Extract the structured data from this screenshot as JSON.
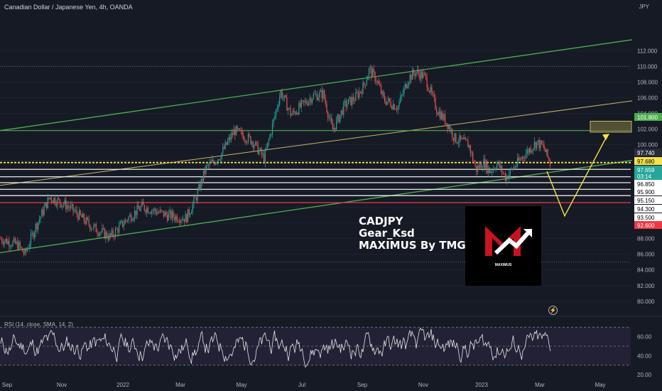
{
  "header": {
    "title": "Canadian Dollar / Japanese Yen, 4h, OANDA",
    "currency": "JPY"
  },
  "watermark": {
    "lines": [
      "CADJPY",
      "Gear_Ksd",
      "MAXIMUS By TMGM"
    ],
    "logo_caption": "MAXIMUS"
  },
  "rsi": {
    "label": "RSI (14, close, SMA, 14, 2)"
  },
  "colors": {
    "background": "#161a25",
    "candle_up": "#26a69a",
    "candle_down": "#ef5350",
    "channel": "#4caf50",
    "midline": "#c8b46b",
    "horizontal_yellow": "#f5e14b",
    "horizontal_white": "#ffffff",
    "horizontal_red": "#f23645",
    "projection": "#f5e14b",
    "rsi_line": "#e6e6e6",
    "rsi_band": "#3b3255"
  },
  "chart_data": {
    "type": "candlestick",
    "symbol": "CADJPY",
    "timeframe": "4h",
    "ylim": [
      78.8,
      115.3
    ],
    "y_ticks": [
      80,
      82,
      84,
      86,
      88,
      90,
      92,
      94,
      96,
      98,
      100,
      102,
      104,
      106,
      108,
      110,
      112
    ],
    "y_tick_labels": [
      "80.000",
      "82.000",
      "84.000",
      "86.000",
      "88.000",
      "90.000",
      "92.000",
      "94.000",
      "96.000",
      "98.000",
      "100.000",
      "102.000",
      "104.000",
      "106.000",
      "108.000",
      "110.000",
      "112.000"
    ],
    "x_labels": [
      "Sep",
      "Nov",
      "2022",
      "Mar",
      "May",
      "Jul",
      "Sep",
      "Nov",
      "2023",
      "Mar",
      "May"
    ],
    "price_path": [
      [
        0,
        88.0
      ],
      [
        25,
        87.2
      ],
      [
        35,
        86.0
      ],
      [
        50,
        89.5
      ],
      [
        70,
        93.3
      ],
      [
        95,
        92.2
      ],
      [
        130,
        89.5
      ],
      [
        155,
        88.2
      ],
      [
        180,
        90.6
      ],
      [
        200,
        92.1
      ],
      [
        235,
        91.0
      ],
      [
        262,
        90.6
      ],
      [
        275,
        93.0
      ],
      [
        290,
        97.0
      ],
      [
        310,
        98.6
      ],
      [
        330,
        101.8
      ],
      [
        355,
        100.5
      ],
      [
        372,
        98.2
      ],
      [
        385,
        103.0
      ],
      [
        395,
        106.8
      ],
      [
        410,
        103.8
      ],
      [
        425,
        105.0
      ],
      [
        440,
        106.2
      ],
      [
        455,
        106.5
      ],
      [
        468,
        101.8
      ],
      [
        485,
        105.0
      ],
      [
        500,
        106.0
      ],
      [
        512,
        107.5
      ],
      [
        520,
        109.6
      ],
      [
        530,
        108.3
      ],
      [
        540,
        105.8
      ],
      [
        560,
        104.8
      ],
      [
        575,
        108.5
      ],
      [
        585,
        109.3
      ],
      [
        598,
        108.7
      ],
      [
        615,
        104.5
      ],
      [
        630,
        102.7
      ],
      [
        640,
        100.8
      ],
      [
        660,
        100.0
      ],
      [
        670,
        96.8
      ],
      [
        680,
        97.8
      ],
      [
        690,
        96.6
      ],
      [
        700,
        97.6
      ],
      [
        712,
        95.8
      ],
      [
        725,
        97.3
      ],
      [
        740,
        98.9
      ],
      [
        755,
        100.3
      ],
      [
        765,
        99.7
      ],
      [
        775,
        97.5
      ]
    ],
    "horizontal_levels": [
      {
        "label": "101.800",
        "value": 101.8,
        "color": "green"
      },
      {
        "label": "97.740",
        "value": 97.74,
        "color": "yellow"
      },
      {
        "label": "97.680",
        "value": 97.68,
        "color": "yellow"
      },
      {
        "label": "97.659",
        "value": 97.659,
        "color": "teal"
      },
      {
        "label": "03:14",
        "value": null,
        "color": "teal"
      },
      {
        "label": "96.850",
        "value": 96.85,
        "color": "white"
      },
      {
        "label": "95.900",
        "value": 95.9,
        "color": "white"
      },
      {
        "label": "95.150",
        "value": 95.15,
        "color": "white"
      },
      {
        "label": "94.300",
        "value": 94.3,
        "color": "white"
      },
      {
        "label": "93.500",
        "value": 93.5,
        "color": "white"
      },
      {
        "label": "92.600",
        "value": 92.6,
        "color": "red"
      }
    ],
    "drawings": {
      "channel_upper": [
        [
          0,
          101.8
        ],
        [
          890,
          113.4
        ]
      ],
      "channel_lower": [
        [
          0,
          86.2
        ],
        [
          890,
          98.0
        ]
      ],
      "channel_mid": [
        [
          0,
          94.8
        ],
        [
          890,
          105.6
        ]
      ],
      "projection_target_box": [
        101.6,
        103.0
      ],
      "projection": [
        [
          770,
          96.6
        ],
        [
          795,
          90.9
        ],
        [
          855,
          101.2
        ]
      ]
    },
    "rsi": {
      "ylim": [
        20,
        80
      ],
      "y_ticks": [
        20,
        40,
        60
      ],
      "y_tick_labels": [
        "20.00",
        "40.00",
        "60.00"
      ],
      "band": [
        30,
        70
      ]
    }
  }
}
